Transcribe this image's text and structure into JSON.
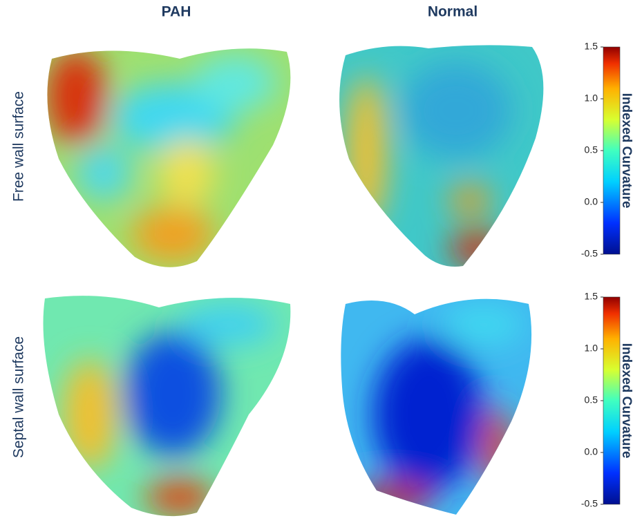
{
  "columns": [
    "PAH",
    "Normal"
  ],
  "rows": [
    "Free wall surface",
    "Septal wall surface"
  ],
  "colorbars": [
    {
      "label": "Indexed Curvature",
      "range": [
        -0.5,
        1.5
      ],
      "ticks": [
        1.5,
        {
          "value": 1,
          "label": "1.0"
        },
        0.5,
        {
          "value": 0,
          "label": "0.0"
        },
        -0.5
      ]
    },
    {
      "label": "Indexed Curvature",
      "range": [
        -0.5,
        1.5
      ],
      "ticks": [
        1.5,
        {
          "value": 1,
          "label": "1.0"
        },
        0.5,
        {
          "value": 0,
          "label": "0.0"
        },
        -0.5
      ]
    }
  ]
}
